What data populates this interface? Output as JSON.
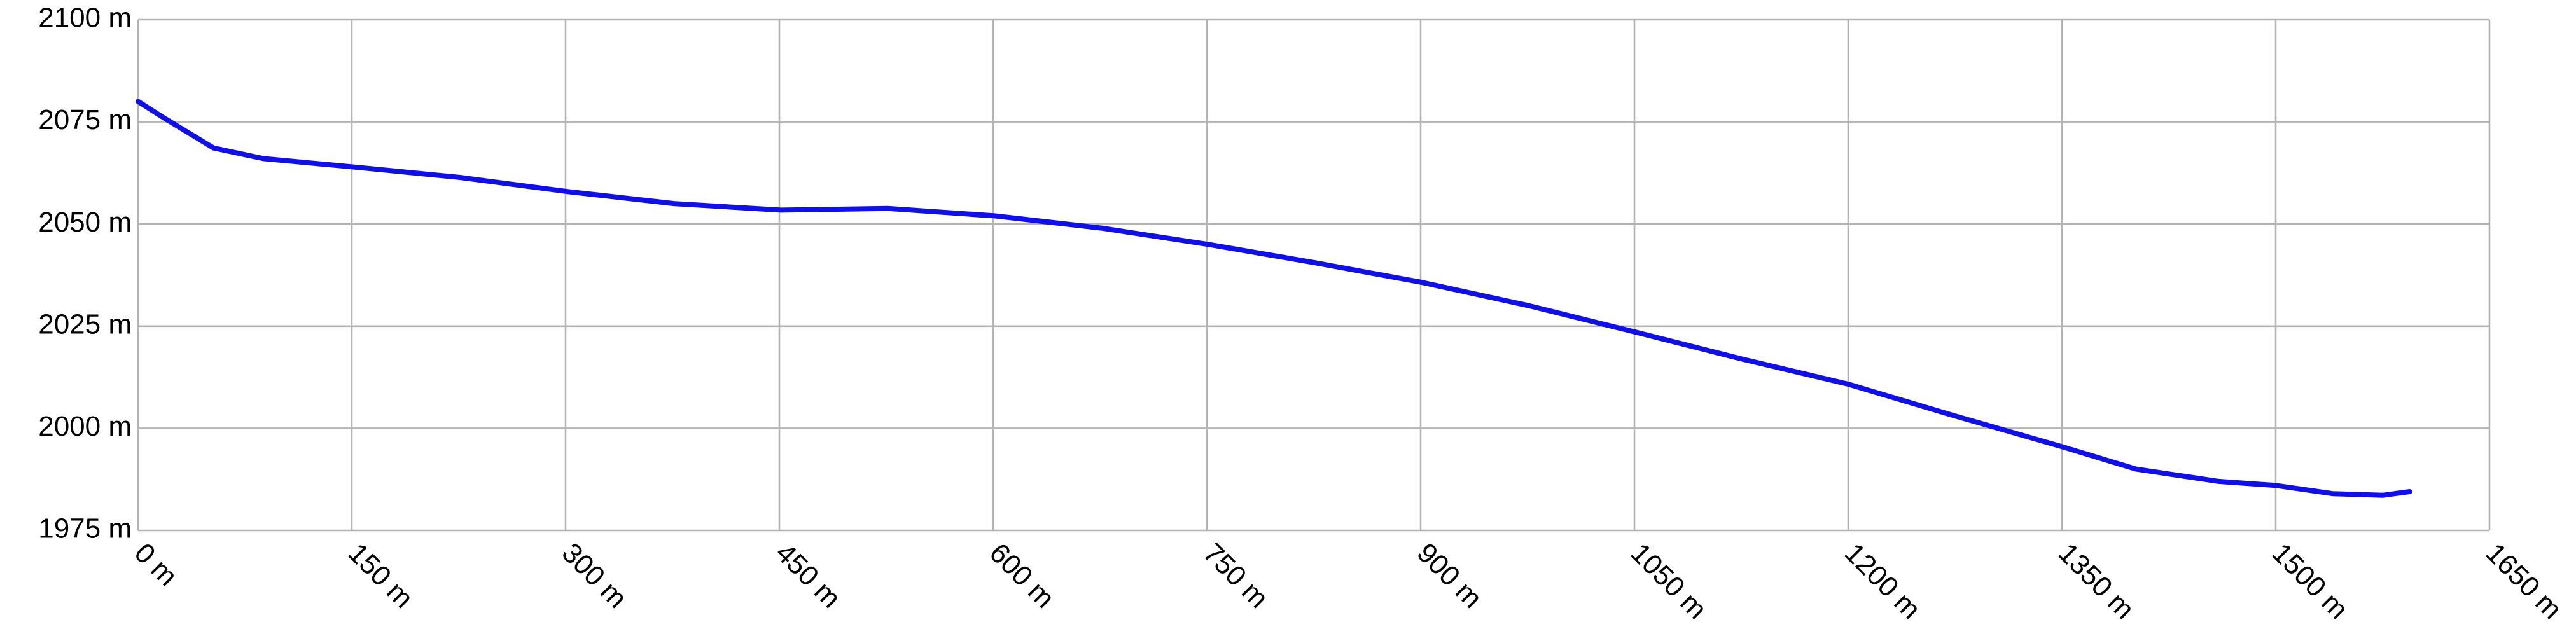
{
  "chart_data": {
    "type": "line",
    "x": [
      0,
      18,
      53,
      88,
      150,
      226,
      300,
      376,
      451,
      526,
      601,
      676,
      751,
      826,
      901,
      976,
      1050,
      1125,
      1200,
      1275,
      1350,
      1402,
      1460,
      1500,
      1540,
      1575,
      1594
    ],
    "values": [
      2080,
      2076,
      2068.6,
      2066,
      2064,
      2061.4,
      2058,
      2055,
      2053.4,
      2053.8,
      2052,
      2049,
      2045,
      2040.5,
      2035.7,
      2030,
      2023.6,
      2017,
      2010.8,
      2003,
      1995.5,
      1990,
      1987,
      1986,
      1984,
      1983.6,
      1984.5
    ],
    "color": "#1010e6",
    "xlim": [
      0,
      1650
    ],
    "xticks": [
      {
        "value": 0,
        "label": "0 m"
      },
      {
        "value": 150,
        "label": "150 m"
      },
      {
        "value": 300,
        "label": "300 m"
      },
      {
        "value": 450,
        "label": "450 m"
      },
      {
        "value": 600,
        "label": "600 m"
      },
      {
        "value": 750,
        "label": "750 m"
      },
      {
        "value": 900,
        "label": "900 m"
      },
      {
        "value": 1050,
        "label": "1050 m"
      },
      {
        "value": 1200,
        "label": "1200 m"
      },
      {
        "value": 1350,
        "label": "1350 m"
      },
      {
        "value": 1500,
        "label": "1500 m"
      },
      {
        "value": 1650,
        "label": "1650 m"
      }
    ],
    "ylim": [
      1975,
      2100
    ],
    "yticks": [
      {
        "value": 1975,
        "label": "1975 m"
      },
      {
        "value": 2000,
        "label": "2000 m"
      },
      {
        "value": 2025,
        "label": "2025 m"
      },
      {
        "value": 2050,
        "label": "2050 m"
      },
      {
        "value": 2075,
        "label": "2075 m"
      },
      {
        "value": 2100,
        "label": "2100 m"
      }
    ],
    "grid": true
  }
}
